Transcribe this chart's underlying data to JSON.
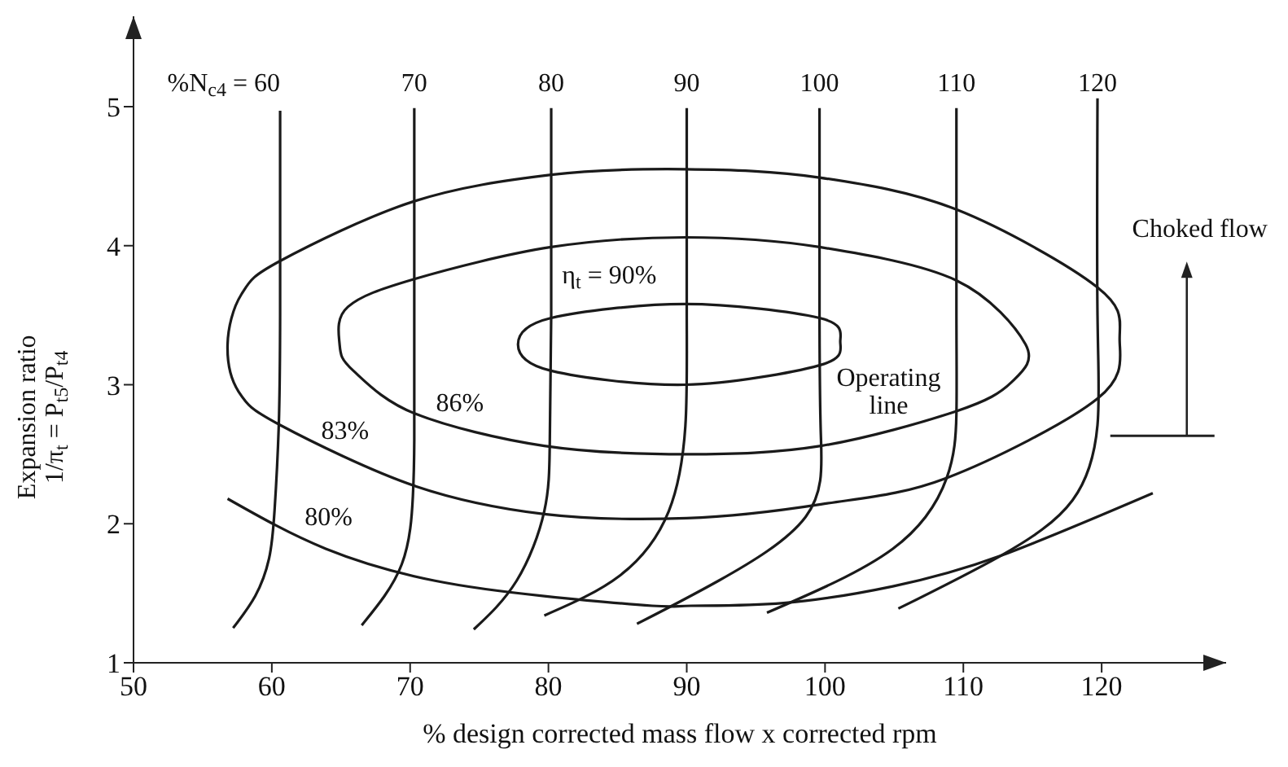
{
  "chart_data": {
    "type": "line",
    "xlabel": "% design corrected mass flow x corrected rpm",
    "ylabel": "Expansion ratio\n1/π$_{t}$ = P$_{t5}$/P$_{t4}$",
    "xlim": [
      50,
      129
    ],
    "ylim": [
      1,
      5.65
    ],
    "xticks": [
      50,
      60,
      70,
      80,
      90,
      100,
      110,
      120
    ],
    "yticks": [
      1,
      2,
      3,
      4,
      5
    ],
    "marker": "none",
    "line_style": "solid",
    "series": [
      {
        "color": "#1a1a1a",
        "x": [
          60.6,
          60.6,
          60.5,
          60.2,
          59.8,
          58.8,
          57.2
        ],
        "values": [
          4.97,
          3.5,
          2.7,
          2.1,
          1.75,
          1.48,
          1.25
        ]
      },
      {
        "color": "#1a1a1a",
        "x": [
          70.3,
          70.3,
          70.3,
          70.2,
          69.4,
          66.5
        ],
        "values": [
          4.99,
          3.5,
          2.6,
          2.2,
          1.71,
          1.27
        ]
      },
      {
        "color": "#1a1a1a",
        "x": [
          80.2,
          80.2,
          80.1,
          79.7,
          77.7,
          74.6
        ],
        "values": [
          4.99,
          3.5,
          2.6,
          2.09,
          1.59,
          1.24
        ]
      },
      {
        "color": "#1a1a1a",
        "x": [
          90,
          90,
          89.9,
          88.7,
          85.2,
          79.7
        ],
        "values": [
          4.99,
          3.5,
          2.7,
          2.09,
          1.63,
          1.34
        ]
      },
      {
        "color": "#1a1a1a",
        "x": [
          99.6,
          99.6,
          99.7,
          98.6,
          92.3,
          86.4
        ],
        "values": [
          4.99,
          3.5,
          2.63,
          2.05,
          1.59,
          1.28
        ]
      },
      {
        "color": "#1a1a1a",
        "x": [
          109.5,
          109.5,
          109.5,
          108.8,
          104.9,
          95.8
        ],
        "values": [
          4.99,
          3.5,
          2.79,
          2.33,
          1.82,
          1.36
        ]
      },
      {
        "color": "#1a1a1a",
        "x": [
          119.7,
          119.7,
          119.7,
          117.9,
          112.7,
          105.3
        ],
        "values": [
          5.06,
          3.5,
          2.71,
          2.17,
          1.77,
          1.39
        ]
      },
      {
        "color": "#1a1a1a",
        "x": [
          56.8,
          63.9,
          71.8,
          79.7,
          87.5,
          90.3,
          97,
          104.9,
          112.7,
          123.7
        ],
        "values": [
          2.18,
          1.82,
          1.59,
          1.48,
          1.41,
          1.41,
          1.43,
          1.55,
          1.77,
          2.22
        ]
      }
    ],
    "annotations": [
      "%N$_{c4}$ = 60",
      "70",
      "80",
      "90",
      "100",
      "110",
      "120",
      "η$_{t}$ = 90%",
      "86%",
      "83%",
      "80%",
      "Operating\nline",
      "Choked flow"
    ]
  }
}
